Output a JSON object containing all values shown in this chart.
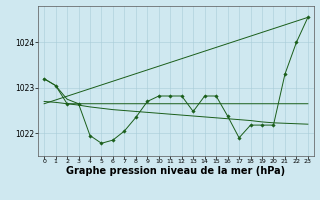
{
  "background_color": "#cfe8f0",
  "grid_color": "#a8cdd8",
  "line_color": "#1a5e1a",
  "xlabel": "Graphe pression niveau de la mer (hPa)",
  "xlabel_fontsize": 7,
  "xlim": [
    -0.5,
    23.5
  ],
  "ylim": [
    1021.5,
    1024.8
  ],
  "yticks": [
    1022,
    1023,
    1024
  ],
  "xticks": [
    0,
    1,
    2,
    3,
    4,
    5,
    6,
    7,
    8,
    9,
    10,
    11,
    12,
    13,
    14,
    15,
    16,
    17,
    18,
    19,
    20,
    21,
    22,
    23
  ],
  "series1_x": [
    0,
    1,
    2,
    3,
    4,
    5,
    6,
    7,
    8,
    9,
    10,
    11,
    12,
    13,
    14,
    15,
    16,
    17,
    18,
    19,
    20,
    21,
    22,
    23
  ],
  "series1_y": [
    1023.2,
    1023.05,
    1022.75,
    1022.65,
    1022.65,
    1022.65,
    1022.65,
    1022.65,
    1022.65,
    1022.65,
    1022.65,
    1022.65,
    1022.65,
    1022.65,
    1022.65,
    1022.65,
    1022.65,
    1022.65,
    1022.65,
    1022.65,
    1022.65,
    1022.65,
    1022.65,
    1022.65
  ],
  "series2_x": [
    0,
    1,
    2,
    3,
    4,
    5,
    6,
    7,
    8,
    9,
    10,
    11,
    12,
    13,
    14,
    15,
    16,
    17,
    18,
    19,
    20,
    21,
    22,
    23
  ],
  "series2_y": [
    1022.7,
    1022.68,
    1022.65,
    1022.62,
    1022.58,
    1022.55,
    1022.52,
    1022.5,
    1022.48,
    1022.46,
    1022.44,
    1022.42,
    1022.4,
    1022.38,
    1022.36,
    1022.34,
    1022.32,
    1022.3,
    1022.28,
    1022.25,
    1022.23,
    1022.22,
    1022.21,
    1022.2
  ],
  "series3_x": [
    0,
    1,
    2,
    3,
    4,
    5,
    6,
    7,
    8,
    9,
    10,
    11,
    12,
    13,
    14,
    15,
    16,
    17,
    18,
    19,
    20,
    21,
    22,
    23
  ],
  "series3_y": [
    1023.2,
    1023.05,
    1022.65,
    1022.65,
    1021.95,
    1021.78,
    1021.85,
    1022.05,
    1022.35,
    1022.7,
    1022.82,
    1022.82,
    1022.82,
    1022.48,
    1022.82,
    1022.82,
    1022.38,
    1021.9,
    1022.18,
    1022.18,
    1022.18,
    1023.3,
    1024.0,
    1024.55
  ],
  "series4_x": [
    0,
    23
  ],
  "series4_y": [
    1022.65,
    1024.55
  ]
}
